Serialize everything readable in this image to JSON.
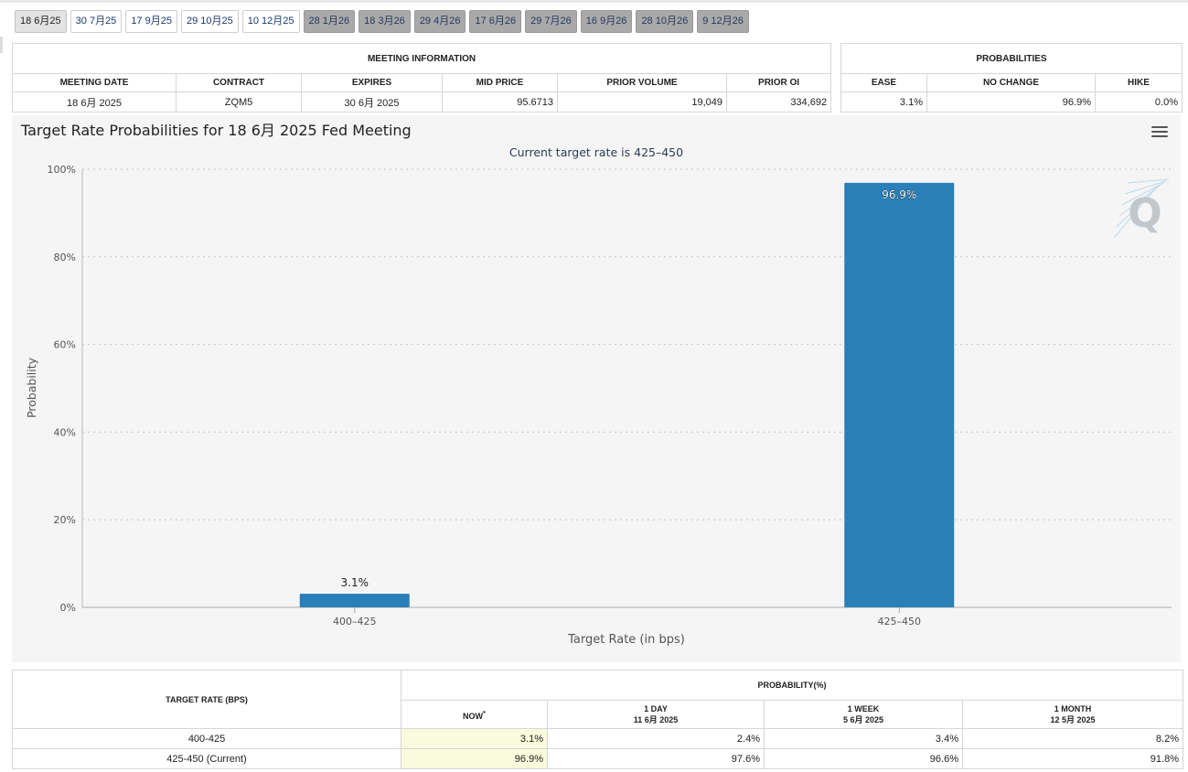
{
  "tabs": [
    {
      "label": "18 6月25",
      "state": "active"
    },
    {
      "label": "30 7月25",
      "state": "normal"
    },
    {
      "label": "17 9月25",
      "state": "normal"
    },
    {
      "label": "29 10月25",
      "state": "normal"
    },
    {
      "label": "10 12月25",
      "state": "normal"
    },
    {
      "label": "28 1月26",
      "state": "disabled"
    },
    {
      "label": "18 3月26",
      "state": "disabled"
    },
    {
      "label": "29 4月26",
      "state": "disabled"
    },
    {
      "label": "17 6月26",
      "state": "disabled"
    },
    {
      "label": "29 7月26",
      "state": "disabled"
    },
    {
      "label": "16 9月26",
      "state": "disabled"
    },
    {
      "label": "28 10月26",
      "state": "disabled"
    },
    {
      "label": "9 12月26",
      "state": "disabled"
    }
  ],
  "meeting": {
    "title": "MEETING INFORMATION",
    "headers": [
      "MEETING DATE",
      "CONTRACT",
      "EXPIRES",
      "MID PRICE",
      "PRIOR VOLUME",
      "PRIOR OI"
    ],
    "row": [
      "18 6月 2025",
      "ZQM5",
      "30 6月 2025",
      "95.6713",
      "19,049",
      "334,692"
    ]
  },
  "probabilities": {
    "title": "PROBABILITIES",
    "headers": [
      "EASE",
      "NO CHANGE",
      "HIKE"
    ],
    "row": [
      "3.1%",
      "96.9%",
      "0.0%"
    ]
  },
  "chart_data": {
    "type": "bar",
    "title": "Target Rate Probabilities for 18 6月 2025 Fed Meeting",
    "subtitle": "Current target rate is 425–450",
    "xlabel": "Target Rate (in bps)",
    "ylabel": "Probability",
    "categories": [
      "400–425",
      "425–450"
    ],
    "values": [
      3.1,
      96.9
    ],
    "data_labels": [
      "3.1%",
      "96.9%"
    ],
    "ylim": [
      0,
      100
    ],
    "yticks": [
      0,
      20,
      40,
      60,
      80,
      100
    ],
    "ytick_labels": [
      "0%",
      "20%",
      "40%",
      "60%",
      "80%",
      "100%"
    ],
    "bar_color": "#2a7fb8",
    "grid": true,
    "logo_text": "Q"
  },
  "bottom": {
    "col1_header": "TARGET RATE (BPS)",
    "prob_header": "PROBABILITY(%)",
    "now": {
      "label": "NOW",
      "marker": "*"
    },
    "cols": [
      {
        "label": "1 DAY",
        "date": "11 6月 2025"
      },
      {
        "label": "1 WEEK",
        "date": "5 6月 2025"
      },
      {
        "label": "1 MONTH",
        "date": "12 5月 2025"
      }
    ],
    "rows": [
      {
        "rate": "400-425",
        "now": "3.1%",
        "values": [
          "2.4%",
          "3.4%",
          "8.2%"
        ]
      },
      {
        "rate": "425-450 (Current)",
        "now": "96.9%",
        "values": [
          "97.6%",
          "96.6%",
          "91.8%"
        ]
      }
    ]
  }
}
